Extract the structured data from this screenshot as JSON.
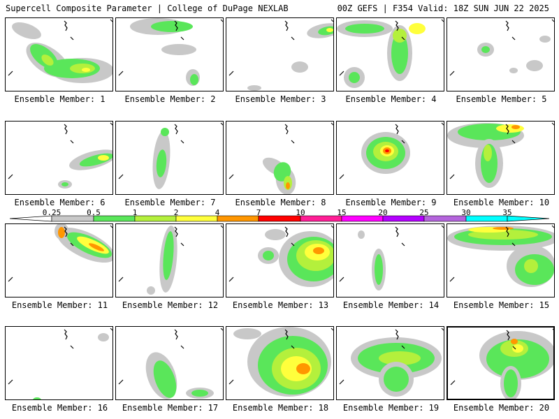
{
  "header": {
    "left": "Supercell Composite Parameter | College of DuPage NEXLAB",
    "right": "00Z GEFS | F354 Valid: 18Z SUN JUN 22 2025"
  },
  "members": [
    "Ensemble Member: 1",
    "Ensemble Member: 2",
    "Ensemble Member: 3",
    "Ensemble Member: 4",
    "Ensemble Member: 5",
    "Ensemble Member: 6",
    "Ensemble Member: 7",
    "Ensemble Member: 8",
    "Ensemble Member: 9",
    "Ensemble Member: 10",
    "Ensemble Member: 11",
    "Ensemble Member: 12",
    "Ensemble Member: 13",
    "Ensemble Member: 14",
    "Ensemble Member: 15",
    "Ensemble Member: 16",
    "Ensemble Member: 17",
    "Ensemble Member: 18",
    "Ensemble Member: 19",
    "Ensemble Member: 20"
  ],
  "legend": {
    "labels": [
      "0.25",
      "0.5",
      "1",
      "2",
      "4",
      "7",
      "10",
      "15",
      "20",
      "25",
      "30",
      "35"
    ],
    "colors": [
      "#ffffff",
      "#c8c8c8",
      "#5ae65a",
      "#b4f03c",
      "#ffff3c",
      "#ff9600",
      "#ff0000",
      "#ff1e96",
      "#ff00ff",
      "#b400ff",
      "#b464dc",
      "#00ffff"
    ]
  },
  "colors": {
    "gray": "#c8c8c8",
    "green": "#5ae65a",
    "lime": "#b4f03c",
    "yellow": "#ffff3c",
    "orange": "#ff9600",
    "red": "#ff0000",
    "border": "#000000"
  }
}
